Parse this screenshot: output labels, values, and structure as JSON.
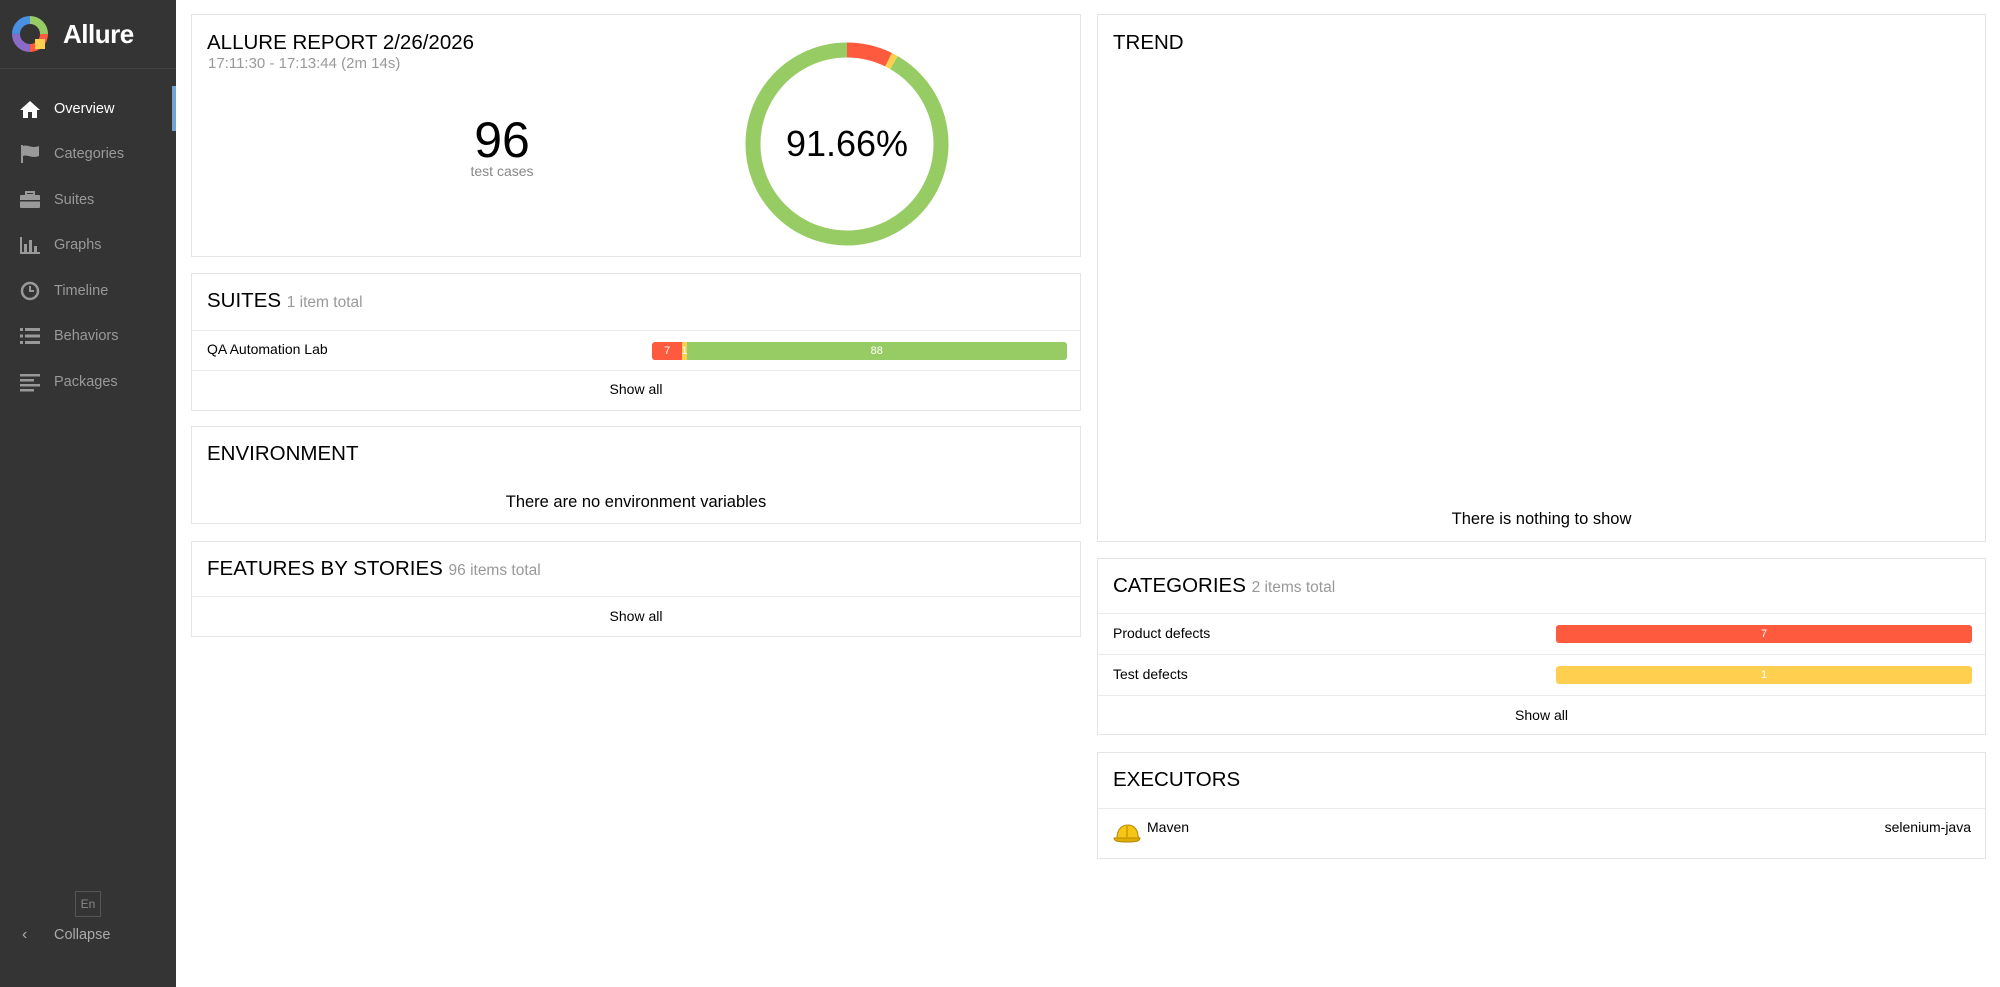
{
  "app": {
    "name": "Allure"
  },
  "sidebar": {
    "items": [
      {
        "label": "Overview",
        "icon": "home-icon",
        "active": true
      },
      {
        "label": "Categories",
        "icon": "flag-icon",
        "active": false
      },
      {
        "label": "Suites",
        "icon": "briefcase-icon",
        "active": false
      },
      {
        "label": "Graphs",
        "icon": "bar-chart-icon",
        "active": false
      },
      {
        "label": "Timeline",
        "icon": "clock-icon",
        "active": false
      },
      {
        "label": "Behaviors",
        "icon": "list-icon",
        "active": false
      },
      {
        "label": "Packages",
        "icon": "align-left-icon",
        "active": false
      }
    ],
    "language": "En",
    "collapse_label": "Collapse"
  },
  "summary": {
    "title": "ALLURE REPORT 2/26/2026",
    "time_range": "17:11:30 - 17:13:44 (2m 14s)",
    "test_count": "96",
    "test_count_label": "test cases",
    "percent_label": "91.66%",
    "donut": [
      {
        "status": "failed",
        "value": 7,
        "color": "#fd5a3e"
      },
      {
        "status": "broken",
        "value": 1,
        "color": "#ffd050"
      },
      {
        "status": "passed",
        "value": 88,
        "color": "#97cc64"
      }
    ]
  },
  "suites": {
    "title": "SUITES",
    "count_text": "1 item total",
    "rows": [
      {
        "name": "QA Automation Lab",
        "segments": [
          {
            "value": 7,
            "label": "7",
            "color": "#fd5a3e"
          },
          {
            "value": 1,
            "label": "1",
            "color": "#ffd050"
          },
          {
            "value": 88,
            "label": "88",
            "color": "#97cc64"
          }
        ]
      }
    ],
    "show_all": "Show all"
  },
  "environment": {
    "title": "ENVIRONMENT",
    "message": "There are no environment variables"
  },
  "features": {
    "title": "FEATURES BY STORIES",
    "count_text": "96 items total",
    "show_all": "Show all"
  },
  "trend": {
    "title": "TREND",
    "message": "There is nothing to show"
  },
  "categories": {
    "title": "CATEGORIES",
    "count_text": "2 items total",
    "rows": [
      {
        "name": "Product defects",
        "value": "7",
        "color": "#fd5a3e"
      },
      {
        "name": "Test defects",
        "value": "1",
        "color": "#ffd050"
      }
    ],
    "show_all": "Show all"
  },
  "executors": {
    "title": "EXECUTORS",
    "rows": [
      {
        "name": "Maven",
        "build": "selenium-java",
        "icon": "hardhat-icon"
      }
    ]
  }
}
